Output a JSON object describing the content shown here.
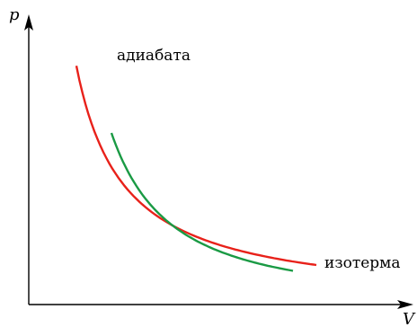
{
  "diagram": {
    "y_axis_label": "p",
    "x_axis_label": "V",
    "colors": {
      "axes": "#000000",
      "isotherm": "#e8211a",
      "adiabat": "#1a9a44"
    },
    "curves": [
      {
        "id": "adiabat",
        "label": "адиабата",
        "exponent": 1.4
      },
      {
        "id": "isotherm",
        "label": "изотерма",
        "exponent": 1.0
      }
    ]
  }
}
